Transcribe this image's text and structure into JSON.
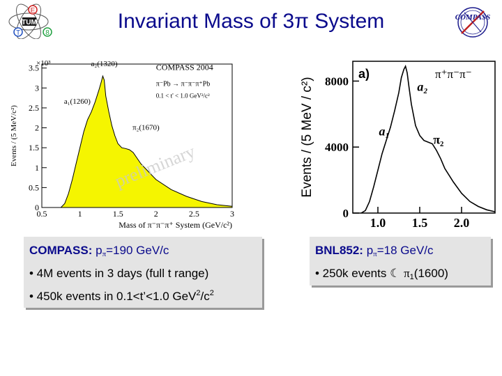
{
  "slide": {
    "title": "Invariant Mass of 3π System",
    "logos": {
      "tum_letters": [
        "E",
        "T",
        "UM",
        "8",
        "TUM"
      ],
      "compass_logo_text": "COMPASS"
    }
  },
  "text_boxes": {
    "left": {
      "header_label": "COMPASS:",
      "header_value_prefix": "p",
      "header_value_sub": "π",
      "header_value_rest": "=190 GeV/c",
      "bullet1": "• 4M events in 3 days (full t range)",
      "bullet2_prefix": "• 450k events in 0.1<t’<1.0 GeV",
      "bullet2_sup1": "2",
      "bullet2_mid": "/c",
      "bullet2_sup2": "2"
    },
    "right": {
      "header_label": "BNL852:",
      "header_value_prefix": "p",
      "header_value_sub": "π",
      "header_value_rest": "=18 GeV/c",
      "bullet1_prefix": "• 250k events",
      "bullet1_symbol": "☾",
      "bullet1_pi": "π",
      "bullet1_sub": "1",
      "bullet1_rest": "(1600)"
    }
  },
  "chart_data": [
    {
      "type": "area",
      "title": "",
      "multiplier_label": "×10³",
      "ylabel": "Events / (5 MeV/c²)",
      "xlabel": "Mass of π⁻π⁻π⁺ System (GeV/c²)",
      "xlim": [
        0.5,
        3
      ],
      "ylim": [
        0,
        3.6
      ],
      "x_ticks": [
        "0.5",
        "1",
        "1.5",
        "2",
        "2.5",
        "3"
      ],
      "x_tick_values": [
        0.5,
        1,
        1.5,
        2,
        2.5,
        3
      ],
      "y_ticks": [
        "0",
        "0.5",
        "1",
        "1.5",
        "2",
        "2.5",
        "3",
        "3.5"
      ],
      "y_tick_values": [
        0,
        0.5,
        1,
        1.5,
        2,
        2.5,
        3,
        3.5
      ],
      "fill_color": "#f5f500",
      "grid": false,
      "watermark": "preliminary",
      "legend_lines": [
        "COMPASS 2004",
        "π⁻Pb → π⁻π⁻π⁺Pb",
        "0.1 < t' < 1.0 GeV²/c²"
      ],
      "annotations": [
        {
          "text": "a₂(1320)",
          "x": 1.32,
          "y": 3.55
        },
        {
          "text": "a₁(1260)",
          "x": 1.05,
          "y": 2.6
        },
        {
          "text": "π₂(1670)",
          "x": 1.75,
          "y": 1.95
        }
      ],
      "x": [
        0.5,
        0.75,
        0.8,
        0.85,
        0.9,
        0.95,
        1.0,
        1.05,
        1.1,
        1.15,
        1.2,
        1.25,
        1.28,
        1.3,
        1.32,
        1.34,
        1.38,
        1.42,
        1.46,
        1.5,
        1.55,
        1.6,
        1.65,
        1.7,
        1.8,
        1.9,
        2.0,
        2.2,
        2.4,
        2.6,
        2.8,
        3.0
      ],
      "values": [
        0,
        0,
        0.1,
        0.35,
        0.7,
        1.1,
        1.5,
        1.9,
        2.2,
        2.4,
        2.65,
        2.95,
        3.15,
        3.3,
        3.2,
        2.8,
        2.4,
        2.05,
        1.8,
        1.6,
        1.5,
        1.48,
        1.45,
        1.38,
        1.1,
        0.9,
        0.7,
        0.45,
        0.28,
        0.15,
        0.07,
        0.03
      ]
    },
    {
      "type": "line",
      "title": "",
      "panel_label": "a)",
      "channel_label": "π⁺π⁻π⁻",
      "ylabel": "Events / (5 MeV / c²)",
      "xlabel": "",
      "xlim": [
        0.7,
        2.4
      ],
      "ylim": [
        0,
        9200
      ],
      "x_ticks": [
        "1.0",
        "1.5",
        "2.0"
      ],
      "x_tick_values": [
        1.0,
        1.5,
        2.0
      ],
      "y_ticks": [
        "0",
        "4000",
        "8000"
      ],
      "y_tick_values": [
        0,
        4000,
        8000
      ],
      "grid": false,
      "annotations": [
        {
          "text": "a₂",
          "x": 1.47,
          "y": 7400
        },
        {
          "text": "a₁",
          "x": 1.02,
          "y": 4700
        },
        {
          "text": "π₂",
          "x": 1.66,
          "y": 4200
        }
      ],
      "x": [
        0.8,
        0.85,
        0.9,
        0.95,
        1.0,
        1.05,
        1.1,
        1.15,
        1.2,
        1.25,
        1.28,
        1.31,
        1.33,
        1.35,
        1.37,
        1.4,
        1.45,
        1.5,
        1.55,
        1.6,
        1.65,
        1.7,
        1.75,
        1.8,
        1.9,
        2.0,
        2.1,
        2.2,
        2.3,
        2.4
      ],
      "values": [
        0,
        150,
        700,
        1600,
        2600,
        3600,
        4400,
        5200,
        6200,
        7300,
        8200,
        8700,
        8900,
        8500,
        7700,
        6600,
        5300,
        4700,
        4400,
        4300,
        4200,
        3800,
        3300,
        2700,
        1900,
        1200,
        700,
        400,
        200,
        80
      ]
    }
  ]
}
